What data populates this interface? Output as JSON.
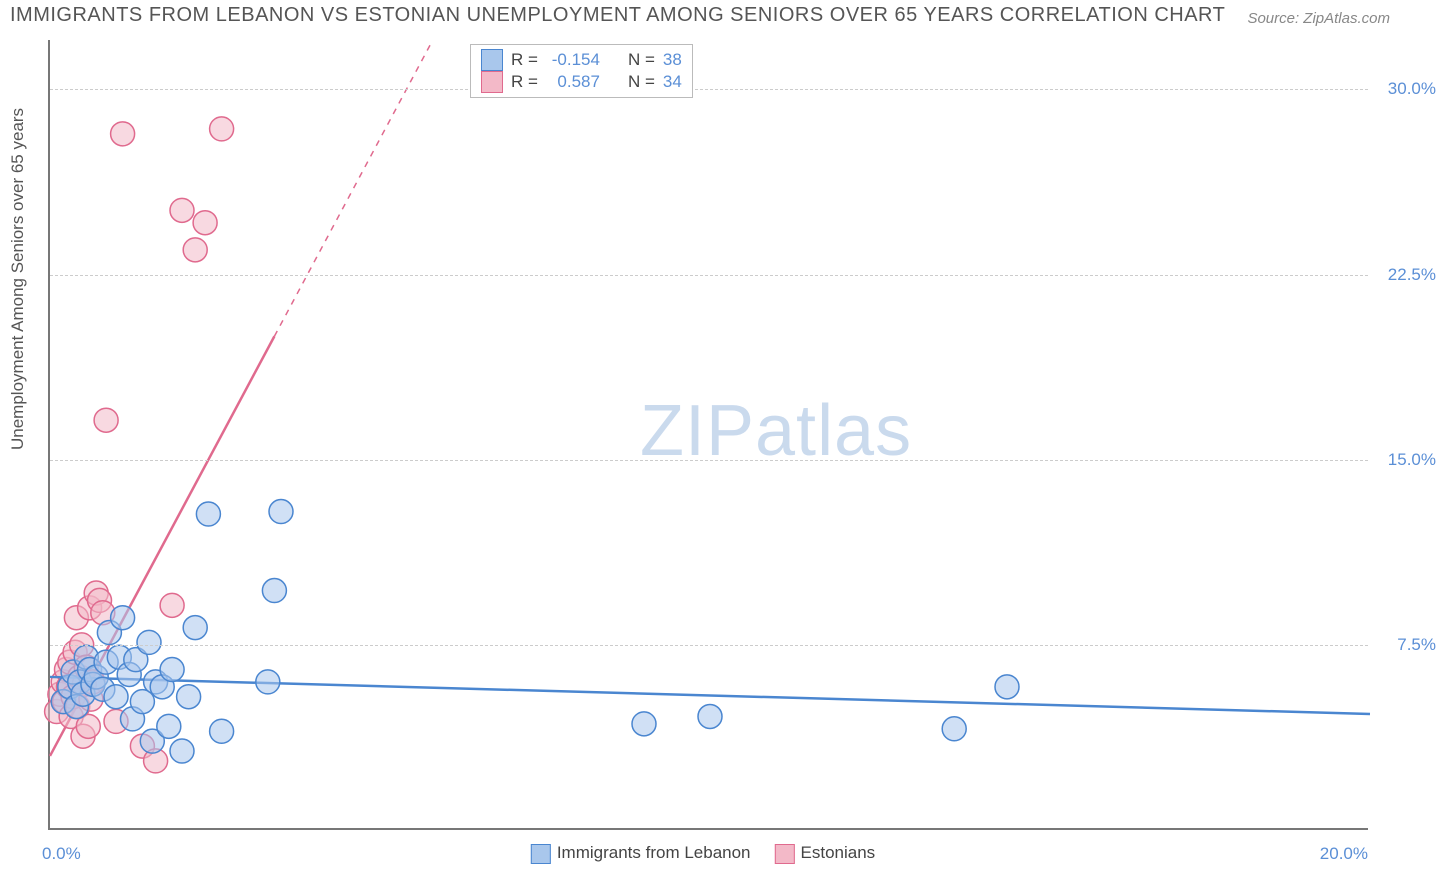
{
  "title": "IMMIGRANTS FROM LEBANON VS ESTONIAN UNEMPLOYMENT AMONG SENIORS OVER 65 YEARS CORRELATION CHART",
  "source": "Source: ZipAtlas.com",
  "ylabel": "Unemployment Among Seniors over 65 years",
  "watermark_a": "ZIP",
  "watermark_b": "atlas",
  "chart": {
    "type": "scatter",
    "background_color": "#ffffff",
    "grid_color": "#cccccc",
    "axis_color": "#777777",
    "tick_color": "#5b8fd6",
    "label_fontsize": 17,
    "title_fontsize": 20,
    "xlim": [
      0,
      20
    ],
    "ylim": [
      0,
      32
    ],
    "x_origin_label": "0.0%",
    "x_max_label": "20.0%",
    "yticks": [
      {
        "v": 7.5,
        "label": "7.5%"
      },
      {
        "v": 15.0,
        "label": "15.0%"
      },
      {
        "v": 22.5,
        "label": "22.5%"
      },
      {
        "v": 30.0,
        "label": "30.0%"
      }
    ],
    "marker_radius": 12,
    "marker_opacity": 0.55,
    "line_width": 2.5,
    "series": [
      {
        "name": "Immigrants from Lebanon",
        "color_fill": "#a9c7ec",
        "color_stroke": "#4a86d0",
        "r": "-0.154",
        "n": "38",
        "regression": {
          "x1": 0,
          "y1": 6.2,
          "x2": 20,
          "y2": 4.7
        },
        "points": [
          [
            0.2,
            5.2
          ],
          [
            0.3,
            5.8
          ],
          [
            0.35,
            6.4
          ],
          [
            0.4,
            5.0
          ],
          [
            0.45,
            6.0
          ],
          [
            0.5,
            5.5
          ],
          [
            0.55,
            7.0
          ],
          [
            0.6,
            6.5
          ],
          [
            0.65,
            5.9
          ],
          [
            0.7,
            6.2
          ],
          [
            0.8,
            5.7
          ],
          [
            0.85,
            6.8
          ],
          [
            0.9,
            8.0
          ],
          [
            1.0,
            5.4
          ],
          [
            1.05,
            7.0
          ],
          [
            1.1,
            8.6
          ],
          [
            1.2,
            6.3
          ],
          [
            1.25,
            4.5
          ],
          [
            1.3,
            6.9
          ],
          [
            1.4,
            5.2
          ],
          [
            1.5,
            7.6
          ],
          [
            1.55,
            3.6
          ],
          [
            1.6,
            6.0
          ],
          [
            1.7,
            5.8
          ],
          [
            1.8,
            4.2
          ],
          [
            1.85,
            6.5
          ],
          [
            2.0,
            3.2
          ],
          [
            2.1,
            5.4
          ],
          [
            2.2,
            8.2
          ],
          [
            2.4,
            12.8
          ],
          [
            2.6,
            4.0
          ],
          [
            3.3,
            6.0
          ],
          [
            3.4,
            9.7
          ],
          [
            3.5,
            12.9
          ],
          [
            9.0,
            4.3
          ],
          [
            10.0,
            4.6
          ],
          [
            13.7,
            4.1
          ],
          [
            14.5,
            5.8
          ]
        ]
      },
      {
        "name": "Estonians",
        "color_fill": "#f3b9c8",
        "color_stroke": "#e06a8e",
        "r": "0.587",
        "n": "34",
        "regression": {
          "x1": 0,
          "y1": 3.0,
          "x2": 3.4,
          "y2": 20.0
        },
        "points": [
          [
            0.1,
            4.8
          ],
          [
            0.15,
            5.5
          ],
          [
            0.2,
            6.0
          ],
          [
            0.22,
            5.2
          ],
          [
            0.25,
            6.5
          ],
          [
            0.28,
            5.8
          ],
          [
            0.3,
            6.8
          ],
          [
            0.32,
            4.6
          ],
          [
            0.35,
            5.4
          ],
          [
            0.38,
            7.2
          ],
          [
            0.4,
            8.6
          ],
          [
            0.42,
            5.0
          ],
          [
            0.45,
            6.2
          ],
          [
            0.48,
            7.5
          ],
          [
            0.5,
            3.8
          ],
          [
            0.52,
            5.9
          ],
          [
            0.55,
            6.6
          ],
          [
            0.58,
            4.2
          ],
          [
            0.6,
            9.0
          ],
          [
            0.62,
            5.3
          ],
          [
            0.65,
            6.0
          ],
          [
            0.7,
            9.6
          ],
          [
            0.75,
            9.3
          ],
          [
            0.8,
            8.8
          ],
          [
            0.85,
            16.6
          ],
          [
            1.0,
            4.4
          ],
          [
            1.1,
            28.2
          ],
          [
            1.4,
            3.4
          ],
          [
            1.6,
            2.8
          ],
          [
            1.85,
            9.1
          ],
          [
            2.0,
            25.1
          ],
          [
            2.2,
            23.5
          ],
          [
            2.35,
            24.6
          ],
          [
            2.6,
            28.4
          ]
        ]
      }
    ]
  },
  "legend_top": {
    "r_label": "R =",
    "n_label": "N ="
  }
}
